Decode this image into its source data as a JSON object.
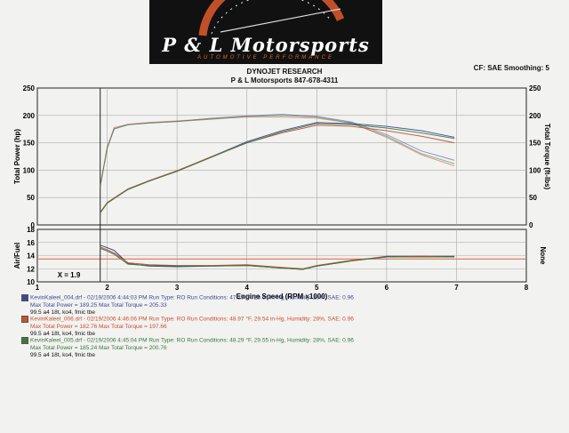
{
  "logo": {
    "name": "P & L Motorsports",
    "tagline": "AUTOMOTIVE PERFORMANCE"
  },
  "header": {
    "line1": "DYNOJET RESEARCH",
    "line2": "P & L Motorsports 847-678-4311",
    "settings": "CF: SAE  Smoothing: 5"
  },
  "chart_data": [
    {
      "type": "line",
      "title": "",
      "xlabel": "Engine Speed (RPM x1000)",
      "ylabel": "Total Power (hp)",
      "y2label": "Total Torque (ft-lbs)",
      "xlim": [
        1,
        8
      ],
      "ylim": [
        0,
        250
      ],
      "y2lim": [
        0,
        250
      ],
      "xticks": [
        "1",
        "2",
        "3",
        "4",
        "5",
        "6",
        "7",
        "8"
      ],
      "yticks": [
        "0",
        "50",
        "100",
        "150",
        "200",
        "250"
      ],
      "grid": true,
      "series": [
        {
          "group": "run004",
          "metric": "torque",
          "color": "#3a4a9a",
          "x": [
            1.9,
            2.0,
            2.1,
            2.3,
            2.6,
            3.0,
            3.5,
            4.0,
            4.5,
            5.0,
            5.5,
            6.0,
            6.5,
            6.97
          ],
          "y": [
            70,
            140,
            175,
            183,
            186,
            189,
            195,
            199,
            202,
            198,
            188,
            165,
            135,
            118
          ]
        },
        {
          "group": "run006",
          "metric": "torque",
          "color": "#c85030",
          "x": [
            1.9,
            2.0,
            2.1,
            2.3,
            2.6,
            3.0,
            3.5,
            4.0,
            4.5,
            5.0,
            5.5,
            6.0,
            6.5,
            6.97
          ],
          "y": [
            72,
            142,
            178,
            184,
            187,
            190,
            194,
            197,
            197,
            195,
            186,
            160,
            128,
            108
          ]
        },
        {
          "group": "run005",
          "metric": "torque",
          "color": "#3a7a3a",
          "x": [
            1.9,
            2.0,
            2.1,
            2.3,
            2.6,
            3.0,
            3.5,
            4.0,
            4.5,
            5.0,
            5.5,
            6.0,
            6.5,
            6.97
          ],
          "y": [
            70,
            141,
            176,
            183,
            186,
            189,
            193,
            198,
            200,
            197,
            186,
            162,
            130,
            112
          ]
        },
        {
          "group": "run004",
          "metric": "power",
          "color": "#3a4a9a",
          "x": [
            1.9,
            2.0,
            2.3,
            2.6,
            3.0,
            3.5,
            4.0,
            4.5,
            5.0,
            5.5,
            6.0,
            6.5,
            6.97
          ],
          "y": [
            22,
            40,
            65,
            80,
            98,
            125,
            152,
            172,
            187,
            185,
            180,
            172,
            160
          ]
        },
        {
          "group": "run006",
          "metric": "power",
          "color": "#c85030",
          "x": [
            1.9,
            2.0,
            2.3,
            2.6,
            3.0,
            3.5,
            4.0,
            4.5,
            5.0,
            5.5,
            6.0,
            6.5,
            6.97
          ],
          "y": [
            23,
            41,
            66,
            81,
            99,
            125,
            150,
            168,
            182,
            180,
            172,
            162,
            150
          ]
        },
        {
          "group": "run005",
          "metric": "power",
          "color": "#3a7a3a",
          "x": [
            1.9,
            2.0,
            2.3,
            2.6,
            3.0,
            3.5,
            4.0,
            4.5,
            5.0,
            5.5,
            6.0,
            6.5,
            6.97
          ],
          "y": [
            22,
            40,
            65,
            80,
            98,
            124,
            150,
            170,
            185,
            183,
            177,
            168,
            158
          ]
        }
      ]
    },
    {
      "type": "line",
      "title": "",
      "xlabel": "Engine Speed (RPM x1000)",
      "ylabel": "Air/Fuel",
      "y2label": "None",
      "xlim": [
        1,
        8
      ],
      "ylim": [
        10,
        18
      ],
      "yticks": [
        "10",
        "12",
        "14",
        "16",
        "18"
      ],
      "reference_line": 13.5,
      "reference_color": "#e06040",
      "annotation": "X = 1.9",
      "grid": true,
      "series": [
        {
          "group": "run004",
          "color": "#3a4a9a",
          "x": [
            1.9,
            2.0,
            2.1,
            2.3,
            2.6,
            3.0,
            3.5,
            4.0,
            4.5,
            4.8,
            5.0,
            5.5,
            6.0,
            6.5,
            6.97
          ],
          "y": [
            15.6,
            15.2,
            14.8,
            12.8,
            12.4,
            12.3,
            12.4,
            12.5,
            12.1,
            11.9,
            12.4,
            13.2,
            13.9,
            13.9,
            13.9
          ]
        },
        {
          "group": "run006",
          "color": "#c85030",
          "x": [
            1.9,
            2.0,
            2.1,
            2.3,
            2.6,
            3.0,
            3.5,
            4.0,
            4.5,
            4.8,
            5.0,
            5.5,
            6.0,
            6.5,
            6.97
          ],
          "y": [
            15.3,
            14.9,
            14.4,
            12.9,
            12.6,
            12.5,
            12.5,
            12.6,
            12.2,
            12.0,
            12.5,
            13.3,
            13.8,
            13.9,
            13.8
          ]
        },
        {
          "group": "run005",
          "color": "#3a7a3a",
          "x": [
            1.9,
            2.0,
            2.1,
            2.3,
            2.6,
            3.0,
            3.5,
            4.0,
            4.5,
            4.8,
            5.0,
            5.5,
            6.0,
            6.5,
            6.97
          ],
          "y": [
            15.1,
            14.7,
            14.2,
            12.7,
            12.5,
            12.4,
            12.4,
            12.5,
            12.1,
            11.9,
            12.4,
            13.2,
            13.8,
            13.8,
            13.8
          ]
        }
      ]
    }
  ],
  "runs": [
    {
      "color": "#3a4a9a",
      "line1": "KevinKaleel_004.drf - 02/19/2006 4:44:03 PM  Run Type: RO  Run Conditions: 47.19 °F, 29.54 in-Hg,  Humidity:  28%, SAE: 0.96",
      "line2": "Max Total Power = 189.25  Max Total Torque = 205.33",
      "line3": "99.5 a4 18t, ko4, fmic tbe"
    },
    {
      "color": "#c85030",
      "line1": "KevinKaleel_006.drf - 02/19/2006 4:46:06 PM  Run Type: RO  Run Conditions: 48.97 °F, 29.54 in-Hg,  Humidity:  28%, SAE: 0.96",
      "line2": "Max Total Power = 182.76  Max Total Torque = 197.66",
      "line3": "99.5 a4 18t, ko4, fmic tbe"
    },
    {
      "color": "#3a7a3a",
      "line1": "KevinKaleel_005.drf - 02/19/2006 4:45:04 PM  Run Type: RO  Run Conditions: 48.29 °F, 29.55 in-Hg,  Humidity:  28%, SAE: 0.96",
      "line2": "Max Total Power = 185.24  Max Total Torque = 200.76",
      "line3": "99.5 a4 18t, ko4, fmic tbe"
    }
  ]
}
